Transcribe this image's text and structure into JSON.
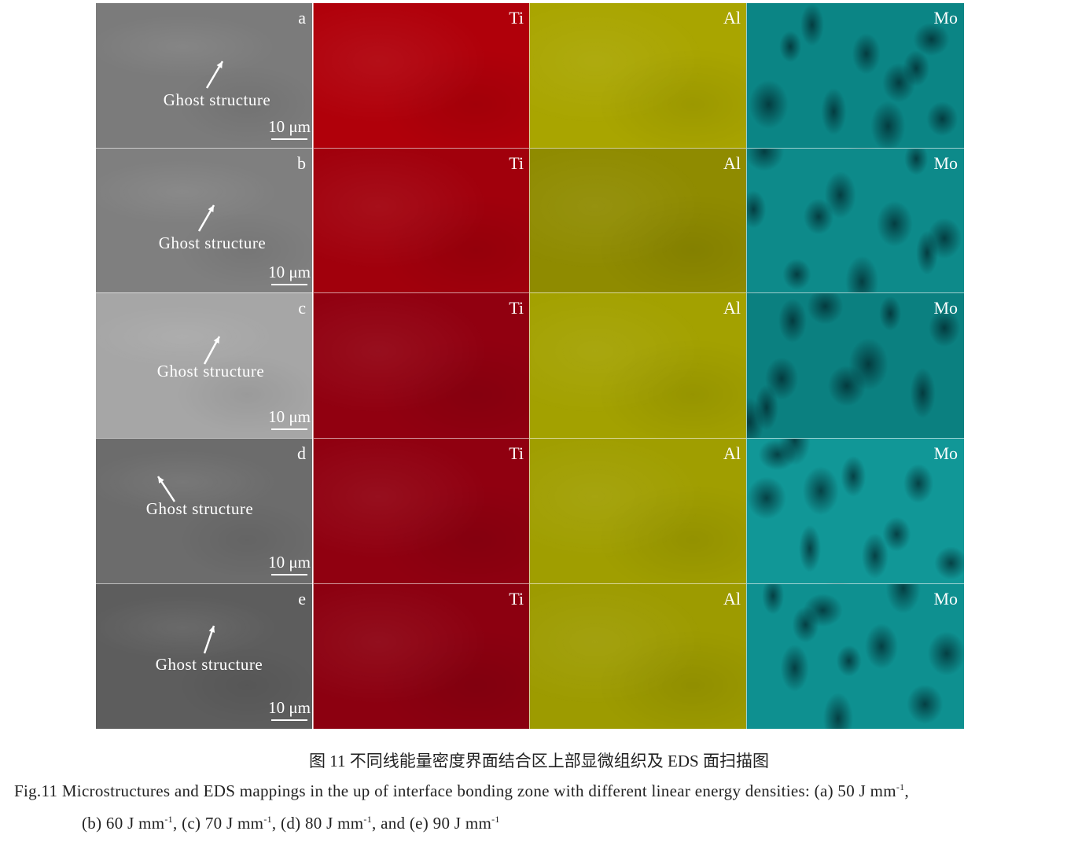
{
  "figure": {
    "rows": [
      {
        "letter": "a",
        "ghost_label": "Ghost structure",
        "scale_label": "10 μm",
        "sem_color": "#7b7b7b",
        "ti_color": "#b0000a",
        "al_color": "#a9a500",
        "mo_color": "#0b8585"
      },
      {
        "letter": "b",
        "ghost_label": "Ghost structure",
        "scale_label": "10 μm",
        "sem_color": "#7f7f7f",
        "ti_color": "#a1000c",
        "al_color": "#8f8b00",
        "mo_color": "#0d8a8a"
      },
      {
        "letter": "c",
        "ghost_label": "Ghost structure",
        "scale_label": "10 μm",
        "sem_color": "#a6a6a6",
        "ti_color": "#910010",
        "al_color": "#a3a100",
        "mo_color": "#0b8080"
      },
      {
        "letter": "d",
        "ghost_label": "Ghost structure",
        "scale_label": "10 μm",
        "sem_color": "#6c6c6c",
        "ti_color": "#900010",
        "al_color": "#a09e00",
        "mo_color": "#119797"
      },
      {
        "letter": "e",
        "ghost_label": "Ghost structure",
        "scale_label": "10 μm",
        "sem_color": "#5d5d5d",
        "ti_color": "#8c0010",
        "al_color": "#9d9b00",
        "mo_color": "#0e9090"
      }
    ],
    "element_labels": [
      "Ti",
      "Al",
      "Mo"
    ]
  },
  "caption": {
    "chinese": "图 11  不同线能量密度界面结合区上部显微组织及 EDS 面扫描图",
    "english_line1_main": "Fig.11  Microstructures and EDS mappings in the up of interface bonding zone with different linear energy densities: (a) 50 J mm",
    "english_line1_end": ",",
    "english_line2": [
      "(b) 60 J mm",
      ", (c) 70 J mm",
      ", (d) 80 J mm",
      ", and (e) 90 J mm"
    ],
    "superscript": "-1"
  }
}
